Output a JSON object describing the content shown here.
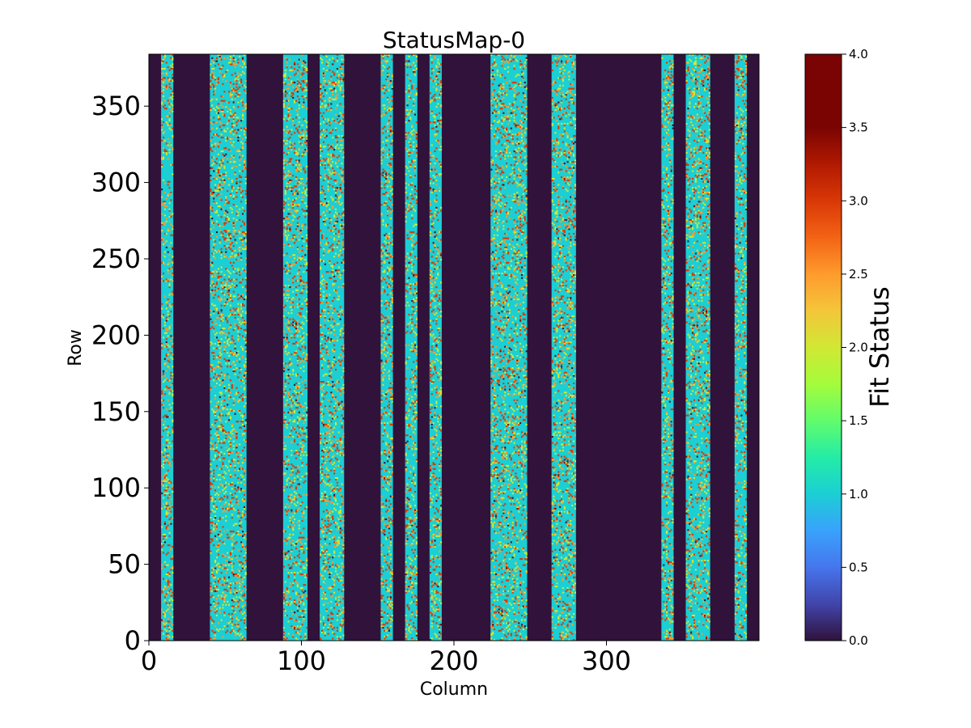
{
  "chart_data": {
    "type": "heatmap",
    "title": "StatusMap-0",
    "xlabel": "Column",
    "ylabel": "Row",
    "colorbar_label": "Fit Status",
    "colormap": "turbo",
    "xlim": [
      0,
      400
    ],
    "ylim": [
      0,
      384
    ],
    "x_ticks": [
      0,
      100,
      200,
      300
    ],
    "x_tick_labels": [
      "0",
      "100",
      "200",
      "300"
    ],
    "y_ticks": [
      0,
      50,
      100,
      150,
      200,
      250,
      300,
      350
    ],
    "y_tick_labels": [
      "0",
      "50",
      "100",
      "150",
      "200",
      "250",
      "300",
      "350"
    ],
    "color_range": [
      0.0,
      4.0
    ],
    "colorbar_ticks": [
      0.0,
      0.5,
      1.0,
      1.5,
      2.0,
      2.5,
      3.0,
      3.5,
      4.0
    ],
    "colorbar_tick_labels": [
      "0.0",
      "0.5",
      "1.0",
      "1.5",
      "2.0",
      "2.5",
      "3.0",
      "3.5",
      "4.0"
    ],
    "background_value": 0.0,
    "dominant_strip_value": 1.0,
    "strips": [
      {
        "start": 8,
        "end": 16
      },
      {
        "start": 40,
        "end": 64
      },
      {
        "start": 88,
        "end": 104
      },
      {
        "start": 112,
        "end": 128
      },
      {
        "start": 152,
        "end": 160
      },
      {
        "start": 168,
        "end": 176
      },
      {
        "start": 184,
        "end": 192
      },
      {
        "start": 224,
        "end": 248
      },
      {
        "start": 264,
        "end": 280
      },
      {
        "start": 336,
        "end": 344
      },
      {
        "start": 352,
        "end": 368
      },
      {
        "start": 384,
        "end": 392
      }
    ],
    "speckle_values": [
      2.0,
      2.5,
      3.0,
      3.5,
      0.0
    ],
    "speckle_fractions": [
      0.07,
      0.05,
      0.07,
      0.004,
      0.004
    ]
  }
}
